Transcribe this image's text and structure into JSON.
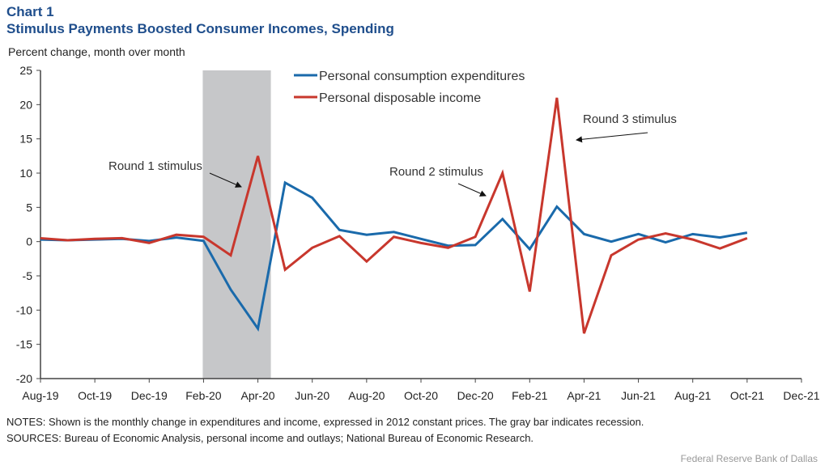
{
  "header": {
    "chart_number": "Chart 1",
    "title": "Stimulus Payments Boosted Consumer Incomes, Spending"
  },
  "notes": "NOTES: Shown is the monthly change in expenditures and income, expressed in 2012 constant prices. The gray bar indicates recession.",
  "sources": "SOURCES: Bureau of Economic Analysis, personal income and outlays; National Bureau of Economic Research.",
  "credit": "Federal Reserve Bank of Dallas",
  "chart_data": {
    "type": "line",
    "title": "Stimulus Payments Boosted Consumer Incomes, Spending",
    "ylabel": "Percent change, month over month",
    "xlabel": "",
    "ylim": [
      -20,
      25
    ],
    "yticks": [
      25,
      20,
      15,
      10,
      5,
      0,
      -5,
      -10,
      -15,
      -20
    ],
    "xtick_labels": [
      "Aug-19",
      "Oct-19",
      "Dec-19",
      "Feb-20",
      "Apr-20",
      "Jun-20",
      "Aug-20",
      "Oct-20",
      "Dec-20",
      "Feb-21",
      "Apr-21",
      "Jun-21",
      "Aug-21",
      "Oct-21",
      "Dec-21"
    ],
    "x": [
      "Aug-19",
      "Sep-19",
      "Oct-19",
      "Nov-19",
      "Dec-19",
      "Jan-20",
      "Feb-20",
      "Mar-20",
      "Apr-20",
      "May-20",
      "Jun-20",
      "Jul-20",
      "Aug-20",
      "Sep-20",
      "Oct-20",
      "Nov-20",
      "Dec-20",
      "Jan-21",
      "Feb-21",
      "Mar-21",
      "Apr-21",
      "May-21",
      "Jun-21",
      "Jul-21",
      "Aug-21",
      "Sep-21",
      "Oct-21"
    ],
    "series": [
      {
        "name": "Personal consumption expenditures",
        "color": "#1a6aab",
        "values": [
          0.3,
          0.2,
          0.3,
          0.4,
          0.1,
          0.6,
          0.1,
          -7.0,
          -12.7,
          8.6,
          6.4,
          1.7,
          1.0,
          1.4,
          0.4,
          -0.6,
          -0.5,
          3.3,
          -1.1,
          5.1,
          1.1,
          0.0,
          1.1,
          -0.1,
          1.1,
          0.6,
          1.3
        ]
      },
      {
        "name": "Personal disposable income",
        "color": "#c8372d",
        "values": [
          0.5,
          0.2,
          0.4,
          0.5,
          -0.2,
          1.0,
          0.7,
          -2.0,
          12.5,
          -4.1,
          -0.9,
          0.8,
          -2.9,
          0.7,
          -0.2,
          -0.9,
          0.7,
          10.0,
          -7.3,
          21.0,
          -13.4,
          -2.0,
          0.3,
          1.2,
          0.3,
          -1.0,
          0.5
        ]
      }
    ],
    "recession_shading": {
      "start": "Feb-20",
      "end": "Apr-20",
      "color": "#c6c7c9"
    },
    "annotations": [
      "Round 1 stimulus",
      "Round 2 stimulus",
      "Round 3 stimulus"
    ],
    "legend": "top-center",
    "grid": false
  }
}
